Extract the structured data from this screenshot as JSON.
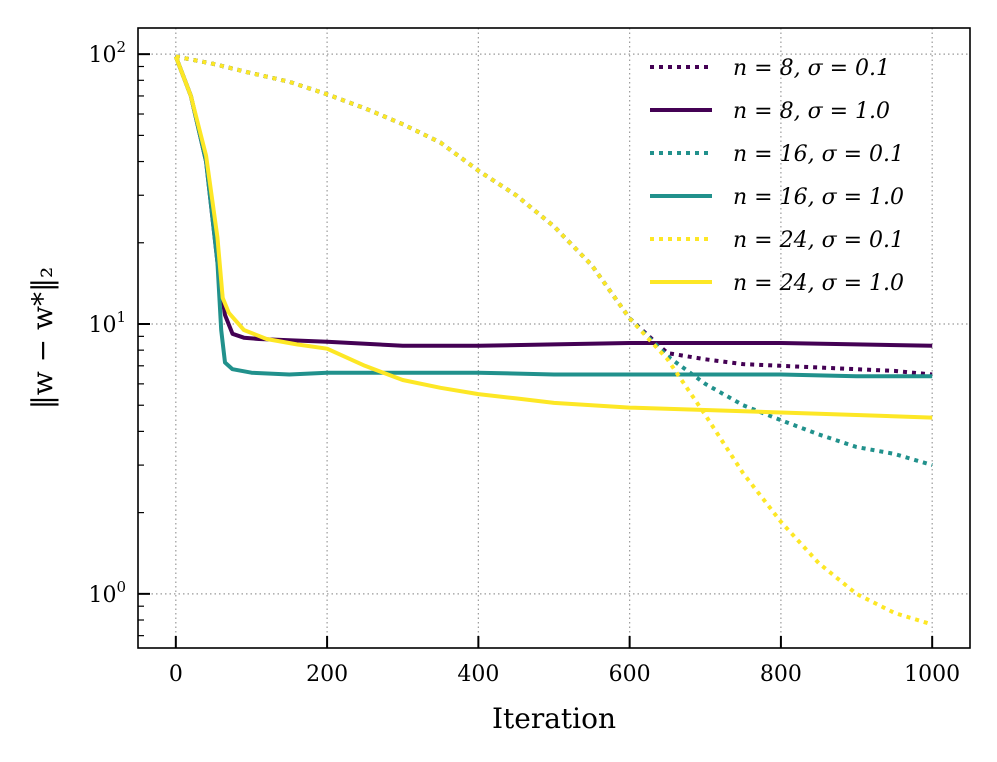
{
  "chart_data": {
    "type": "line",
    "title": "",
    "xlabel": "Iteration",
    "ylabel": "‖w − w*‖₂",
    "xlim": [
      -50,
      1050
    ],
    "ylim": [
      0.63,
      125
    ],
    "yscale": "log",
    "grid": true,
    "legend_position": "top-right",
    "x_ticks": [
      0,
      200,
      400,
      600,
      800,
      1000
    ],
    "x_tick_labels": [
      "0",
      "200",
      "400",
      "600",
      "800",
      "1000"
    ],
    "y_ticks": [
      1,
      10,
      100
    ],
    "y_tick_bases": [
      "10",
      "10",
      "10"
    ],
    "y_tick_exps": [
      "0",
      "1",
      "2"
    ],
    "series": [
      {
        "name": "n = 8, σ = 0.1",
        "color": "#440154",
        "style": "dotted",
        "x": [
          0,
          50,
          100,
          150,
          200,
          250,
          300,
          350,
          400,
          450,
          500,
          550,
          600,
          620,
          650,
          700,
          750,
          800,
          850,
          900,
          950,
          1000
        ],
        "y": [
          98,
          92,
          85,
          79,
          71,
          63,
          55,
          47,
          37,
          30,
          23,
          16.5,
          10.5,
          9.3,
          7.8,
          7.4,
          7.1,
          7.0,
          6.9,
          6.8,
          6.7,
          6.5
        ]
      },
      {
        "name": "n = 8, σ = 1.0",
        "color": "#440154",
        "style": "solid",
        "x": [
          0,
          20,
          40,
          55,
          65,
          75,
          90,
          110,
          150,
          200,
          300,
          400,
          500,
          600,
          700,
          800,
          900,
          1000
        ],
        "y": [
          98,
          70,
          40,
          17,
          10.8,
          9.2,
          8.9,
          8.8,
          8.7,
          8.6,
          8.3,
          8.3,
          8.4,
          8.5,
          8.5,
          8.5,
          8.4,
          8.3
        ]
      },
      {
        "name": "n = 16, σ = 0.1",
        "color": "#21918c",
        "style": "dotted",
        "x": [
          0,
          50,
          100,
          150,
          200,
          250,
          300,
          350,
          400,
          450,
          500,
          550,
          600,
          650,
          700,
          750,
          800,
          850,
          900,
          950,
          1000
        ],
        "y": [
          98,
          92,
          85,
          79,
          71,
          63,
          55,
          47,
          37,
          30,
          23,
          16.5,
          10.5,
          7.6,
          6.0,
          5.0,
          4.4,
          3.9,
          3.5,
          3.3,
          3.0
        ]
      },
      {
        "name": "n = 16, σ = 1.0",
        "color": "#21918c",
        "style": "solid",
        "x": [
          0,
          20,
          40,
          55,
          60,
          65,
          75,
          100,
          150,
          200,
          300,
          400,
          500,
          600,
          700,
          800,
          900,
          1000
        ],
        "y": [
          98,
          70,
          40,
          17,
          9.5,
          7.2,
          6.8,
          6.6,
          6.5,
          6.6,
          6.6,
          6.6,
          6.5,
          6.5,
          6.5,
          6.5,
          6.4,
          6.4
        ]
      },
      {
        "name": "n = 24, σ = 0.1",
        "color": "#fde725",
        "style": "dotted",
        "x": [
          0,
          50,
          100,
          150,
          200,
          250,
          300,
          350,
          400,
          450,
          500,
          550,
          600,
          650,
          700,
          750,
          800,
          850,
          900,
          950,
          1000
        ],
        "y": [
          98,
          92,
          85,
          79,
          71,
          63,
          55,
          47,
          37,
          30,
          23,
          16.5,
          10.5,
          7.4,
          4.6,
          2.8,
          1.85,
          1.3,
          1.0,
          0.85,
          0.77
        ]
      },
      {
        "name": "n = 24, σ = 1.0",
        "color": "#fde725",
        "style": "solid",
        "x": [
          0,
          20,
          40,
          55,
          62,
          70,
          90,
          120,
          160,
          200,
          250,
          300,
          350,
          400,
          450,
          500,
          550,
          600,
          700,
          800,
          900,
          1000
        ],
        "y": [
          98,
          70,
          42,
          21,
          12.5,
          11,
          9.5,
          8.8,
          8.4,
          8.1,
          7.0,
          6.2,
          5.8,
          5.5,
          5.3,
          5.1,
          5.0,
          4.9,
          4.8,
          4.7,
          4.6,
          4.5
        ]
      }
    ]
  }
}
